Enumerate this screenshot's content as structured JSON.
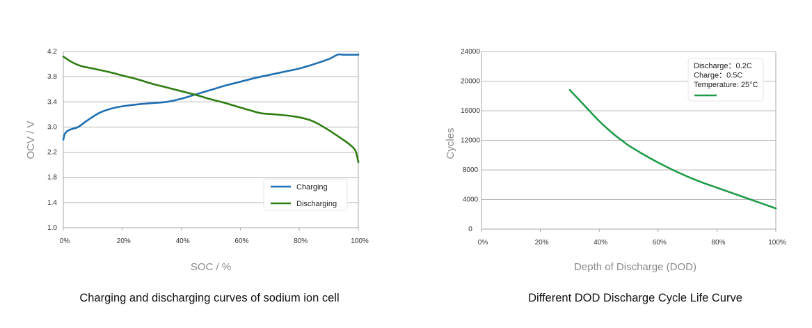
{
  "chart_data": [
    {
      "type": "line",
      "title": "",
      "caption": "Charging and discharging curves of sodium ion cell",
      "xlabel": "SOC / %",
      "ylabel": "OCV / V",
      "x_tick_labels": [
        "0%",
        "20%",
        "40%",
        "60%",
        "80%",
        "100%"
      ],
      "x_ticks": [
        0,
        20,
        40,
        60,
        80,
        100
      ],
      "xlim": [
        0,
        100
      ],
      "y_tick_labels": [
        "4.2",
        "3.8",
        "3.4",
        "3.0",
        "2.2",
        "1.8",
        "1.4",
        "1.0"
      ],
      "y_tick_values": [
        4.2,
        3.8,
        3.4,
        3.0,
        2.2,
        1.8,
        1.4,
        1.0
      ],
      "ylim": [
        1.0,
        4.2
      ],
      "grid": true,
      "legend_position": "bottom-right",
      "colors": {
        "Charging": "#1f6fb2",
        "Discharging": "#2e7d12"
      },
      "series": [
        {
          "name": "Charging",
          "x": [
            0,
            0.5,
            1.5,
            3,
            5,
            8,
            12,
            16,
            20,
            25,
            30,
            35,
            40,
            45,
            50,
            55,
            60,
            65,
            70,
            75,
            80,
            85,
            90,
            93,
            95,
            100
          ],
          "y": [
            2.6,
            2.78,
            2.88,
            2.94,
            3.0,
            3.1,
            3.22,
            3.29,
            3.33,
            3.36,
            3.38,
            3.4,
            3.45,
            3.52,
            3.59,
            3.66,
            3.72,
            3.78,
            3.83,
            3.88,
            3.93,
            4.0,
            4.08,
            4.15,
            4.15,
            4.15
          ]
        },
        {
          "name": "Discharging",
          "x": [
            0,
            3,
            6,
            10,
            15,
            20,
            25,
            30,
            35,
            40,
            45,
            50,
            55,
            60,
            63,
            67,
            72,
            78,
            83,
            86,
            90,
            94,
            97,
            99,
            100
          ],
          "y": [
            4.12,
            4.03,
            3.97,
            3.93,
            3.88,
            3.82,
            3.76,
            3.69,
            3.63,
            3.57,
            3.51,
            3.44,
            3.38,
            3.31,
            3.27,
            3.22,
            3.2,
            3.17,
            3.12,
            3.06,
            2.9,
            2.65,
            2.45,
            2.25,
            2.04
          ]
        }
      ]
    },
    {
      "type": "line",
      "title": "",
      "caption": "Different DOD Discharge Cycle Life Curve",
      "xlabel": "Depth of Discharge (DOD)",
      "ylabel": "Cycles",
      "x_tick_labels": [
        "0%",
        "20%",
        "40%",
        "60%",
        "80%",
        "100%"
      ],
      "x_ticks": [
        0,
        20,
        40,
        60,
        80,
        100
      ],
      "xlim": [
        0,
        100
      ],
      "y_tick_labels": [
        "24000",
        "20000",
        "16000",
        "12000",
        "8000",
        "4000",
        "0"
      ],
      "y_tick_values": [
        24000,
        20000,
        16000,
        12000,
        8000,
        4000,
        0
      ],
      "ylim": [
        0,
        24000
      ],
      "grid": true,
      "legend_position": "top-right",
      "legend_lines": [
        "Discharge：0.2C",
        "Charge：0.5C",
        "Temperature: 25°C"
      ],
      "colors": {
        "Cycle life": "#1f9a48"
      },
      "series": [
        {
          "name": "Cycle life",
          "x": [
            30,
            35,
            40,
            45,
            48,
            50,
            55,
            60,
            65,
            70,
            75,
            80,
            85,
            90,
            95,
            100
          ],
          "y": [
            18800,
            16700,
            14600,
            12800,
            11900,
            11300,
            10100,
            9000,
            8000,
            7100,
            6300,
            5600,
            4900,
            4200,
            3500,
            2800
          ]
        }
      ]
    }
  ]
}
